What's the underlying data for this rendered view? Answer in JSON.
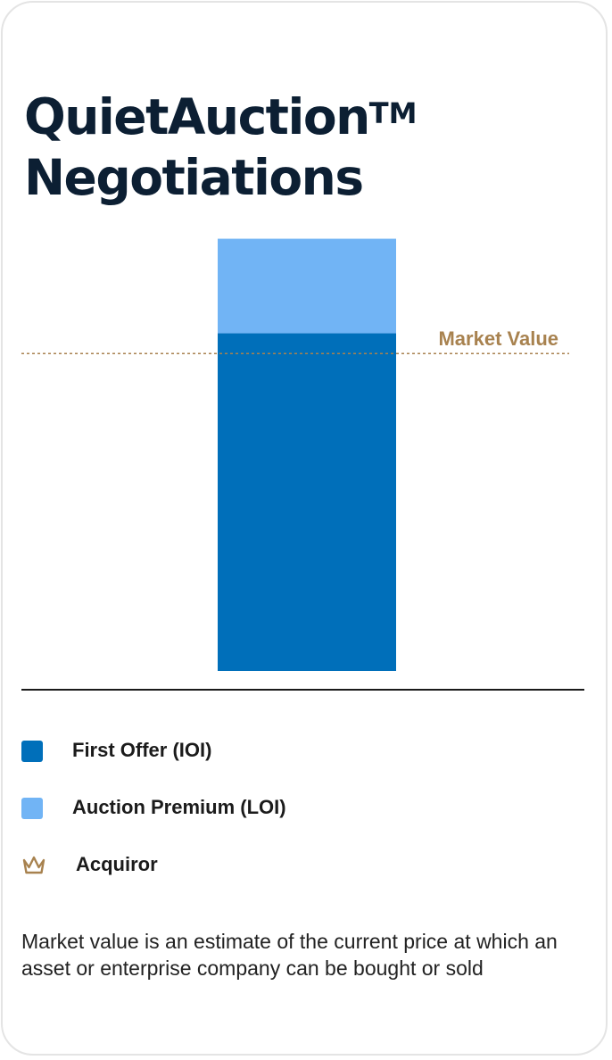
{
  "card": {
    "title_line1": "QuietAuction",
    "title_tm": "TM",
    "title_line2": "Negotiations",
    "note": "Market value is an estimate of the current price at which an asset or enterprise company can be bought or sold"
  },
  "colors": {
    "first_offer": "#006fba",
    "auction_premium": "#71b4f5",
    "gold": "#a8824f",
    "title": "#0c1f33",
    "axis": "#1a1a1a"
  },
  "legend": {
    "items": [
      {
        "label": "First Offer (IOI)",
        "color": "#006fba",
        "icon": "square-swatch"
      },
      {
        "label": "Auction Premium (LOI)",
        "color": "#71b4f5",
        "icon": "square-swatch"
      },
      {
        "label": "Acquiror",
        "color": "#a8824f",
        "icon": "crown-icon"
      }
    ]
  },
  "chart_data": {
    "type": "bar",
    "stacked": true,
    "categories": [
      "Acquiror"
    ],
    "series": [
      {
        "name": "First Offer (IOI)",
        "values": [
          100
        ]
      },
      {
        "name": "Auction Premium (LOI)",
        "values": [
          28
        ]
      }
    ],
    "reference_line": {
      "label": "Market Value",
      "value": 94,
      "style": "dotted"
    },
    "ylim": [
      0,
      130
    ],
    "grid": false,
    "legend_position": "bottom",
    "annotation_icon": "crown-icon"
  }
}
